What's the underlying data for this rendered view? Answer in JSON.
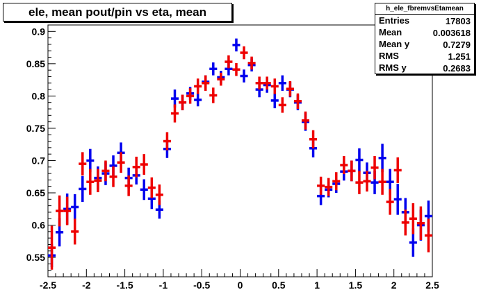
{
  "title": "ele, mean pout/pin vs eta, mean",
  "stats": {
    "name": "h_ele_fbremvsEtamean",
    "rows": [
      {
        "label": "Entries",
        "value": "17803"
      },
      {
        "label": "Mean",
        "value": "0.003618"
      },
      {
        "label": "Mean y",
        "value": "0.7279"
      },
      {
        "label": "RMS",
        "value": "1.251"
      },
      {
        "label": "RMS y",
        "value": "0.2683"
      }
    ]
  },
  "chart_data": {
    "type": "scatter",
    "title": "ele, mean pout/pin vs eta, mean",
    "xlabel": "",
    "ylabel": "",
    "xlim": [
      -2.5,
      2.5
    ],
    "ylim": [
      0.52,
      0.91
    ],
    "bin_half_width": 0.05,
    "x_ticks": [
      "-2.5",
      "-2",
      "-1.5",
      "-1",
      "-0.5",
      "0",
      "0.5",
      "1",
      "1.5",
      "2",
      "2.5"
    ],
    "y_ticks": [
      "0.55",
      "0.6",
      "0.65",
      "0.7",
      "0.75",
      "0.8",
      "0.85",
      "0.9"
    ],
    "grid": false,
    "legend": "none",
    "series": [
      {
        "color": "#0000ee",
        "x": [
          -2.45,
          -2.35,
          -2.25,
          -2.15,
          -2.05,
          -1.95,
          -1.85,
          -1.75,
          -1.65,
          -1.55,
          -1.45,
          -1.35,
          -1.25,
          -1.15,
          -1.05,
          -0.95,
          -0.85,
          -0.75,
          -0.65,
          -0.55,
          -0.45,
          -0.35,
          -0.25,
          -0.15,
          -0.05,
          0.05,
          0.15,
          0.25,
          0.35,
          0.45,
          0.55,
          0.65,
          0.75,
          0.85,
          0.95,
          1.05,
          1.15,
          1.25,
          1.35,
          1.45,
          1.55,
          1.65,
          1.75,
          1.85,
          1.95,
          2.05,
          2.15,
          2.25,
          2.35,
          2.45
        ],
        "y": [
          0.553,
          0.589,
          0.625,
          0.628,
          0.656,
          0.7,
          0.673,
          0.68,
          0.692,
          0.712,
          0.673,
          0.677,
          0.655,
          0.641,
          0.624,
          0.718,
          0.796,
          0.79,
          0.804,
          0.794,
          0.822,
          0.842,
          0.829,
          0.842,
          0.879,
          0.831,
          0.848,
          0.81,
          0.817,
          0.793,
          0.82,
          0.81,
          0.79,
          0.76,
          0.719,
          0.645,
          0.655,
          0.664,
          0.683,
          0.684,
          0.701,
          0.681,
          0.666,
          0.704,
          0.667,
          0.64,
          0.62,
          0.573,
          0.6,
          0.614
        ],
        "err": [
          0.018,
          0.022,
          0.024,
          0.02,
          0.02,
          0.018,
          0.018,
          0.018,
          0.016,
          0.016,
          0.016,
          0.014,
          0.016,
          0.016,
          0.014,
          0.014,
          0.014,
          0.012,
          0.01,
          0.01,
          0.01,
          0.01,
          0.01,
          0.01,
          0.01,
          0.01,
          0.01,
          0.012,
          0.012,
          0.012,
          0.012,
          0.012,
          0.012,
          0.014,
          0.014,
          0.014,
          0.012,
          0.014,
          0.014,
          0.016,
          0.018,
          0.016,
          0.018,
          0.022,
          0.02,
          0.024,
          0.022,
          0.022,
          0.024,
          0.024
        ]
      },
      {
        "color": "#ee0000",
        "x": [
          -2.45,
          -2.35,
          -2.25,
          -2.15,
          -2.05,
          -1.95,
          -1.85,
          -1.75,
          -1.65,
          -1.55,
          -1.45,
          -1.35,
          -1.25,
          -1.15,
          -1.05,
          -0.95,
          -0.85,
          -0.75,
          -0.65,
          -0.55,
          -0.45,
          -0.35,
          -0.25,
          -0.15,
          -0.05,
          0.05,
          0.15,
          0.25,
          0.35,
          0.45,
          0.55,
          0.65,
          0.75,
          0.85,
          0.95,
          1.05,
          1.15,
          1.25,
          1.35,
          1.45,
          1.55,
          1.65,
          1.75,
          1.85,
          1.95,
          2.05,
          2.15,
          2.25,
          2.35,
          2.45
        ],
        "y": [
          0.565,
          0.622,
          0.622,
          0.59,
          0.695,
          0.667,
          0.669,
          0.684,
          0.675,
          0.697,
          0.661,
          0.69,
          0.694,
          0.658,
          0.647,
          0.73,
          0.773,
          0.79,
          0.8,
          0.815,
          0.82,
          0.801,
          0.826,
          0.853,
          0.841,
          0.867,
          0.851,
          0.82,
          0.82,
          0.815,
          0.786,
          0.811,
          0.792,
          0.762,
          0.733,
          0.661,
          0.659,
          0.668,
          0.693,
          0.684,
          0.666,
          0.668,
          0.689,
          0.667,
          0.636,
          0.685,
          0.604,
          0.61,
          0.603,
          0.584
        ],
        "err": [
          0.034,
          0.024,
          0.022,
          0.02,
          0.018,
          0.02,
          0.018,
          0.016,
          0.016,
          0.016,
          0.016,
          0.016,
          0.016,
          0.016,
          0.016,
          0.014,
          0.014,
          0.012,
          0.012,
          0.012,
          0.012,
          0.012,
          0.01,
          0.01,
          0.01,
          0.01,
          0.01,
          0.01,
          0.01,
          0.012,
          0.012,
          0.012,
          0.012,
          0.014,
          0.014,
          0.014,
          0.014,
          0.014,
          0.014,
          0.016,
          0.018,
          0.016,
          0.018,
          0.02,
          0.02,
          0.02,
          0.02,
          0.024,
          0.026,
          0.026
        ]
      }
    ]
  }
}
